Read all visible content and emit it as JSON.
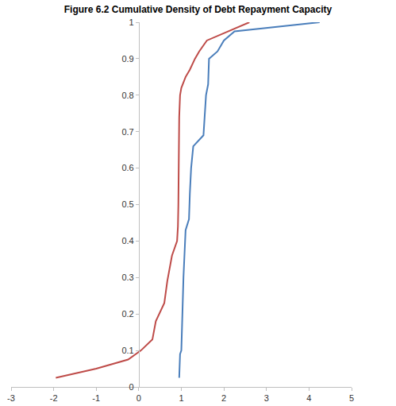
{
  "chart_data": {
    "type": "line",
    "title": "Figure 6.2 Cumulative Density of Debt Repayment Capacity",
    "series": [
      {
        "color": "#4a7ebb",
        "x": [
          0.95,
          0.97,
          1.0,
          1.02,
          1.05,
          1.1,
          1.18,
          1.2,
          1.23,
          1.28,
          1.45,
          1.52,
          1.58,
          1.63,
          1.65,
          1.85,
          2.0,
          2.25,
          4.25
        ],
        "values": [
          0.025,
          0.09,
          0.1,
          0.2,
          0.3,
          0.43,
          0.46,
          0.53,
          0.6,
          0.66,
          0.68,
          0.69,
          0.8,
          0.83,
          0.9,
          0.92,
          0.95,
          0.975,
          1.0
        ]
      },
      {
        "color": "#be4b48",
        "x": [
          -1.95,
          -1.0,
          -0.25,
          0.05,
          0.32,
          0.4,
          0.6,
          0.67,
          0.78,
          0.9,
          0.92,
          0.93,
          0.95,
          0.97,
          1.0,
          1.1,
          1.2,
          1.32,
          1.42,
          1.6,
          2.6
        ],
        "values": [
          0.025,
          0.05,
          0.075,
          0.1,
          0.13,
          0.18,
          0.23,
          0.29,
          0.36,
          0.4,
          0.44,
          0.5,
          0.74,
          0.8,
          0.82,
          0.85,
          0.87,
          0.9,
          0.92,
          0.95,
          1.0
        ]
      }
    ],
    "xlim": [
      -3,
      5
    ],
    "xticks": [
      -3,
      -2,
      -1,
      0,
      1,
      2,
      3,
      4,
      5
    ],
    "ylim": [
      0,
      1
    ],
    "yticks": [
      0,
      0.1,
      0.2,
      0.3,
      0.4,
      0.5,
      0.6,
      0.7,
      0.8,
      0.9,
      1
    ],
    "grid": false
  }
}
